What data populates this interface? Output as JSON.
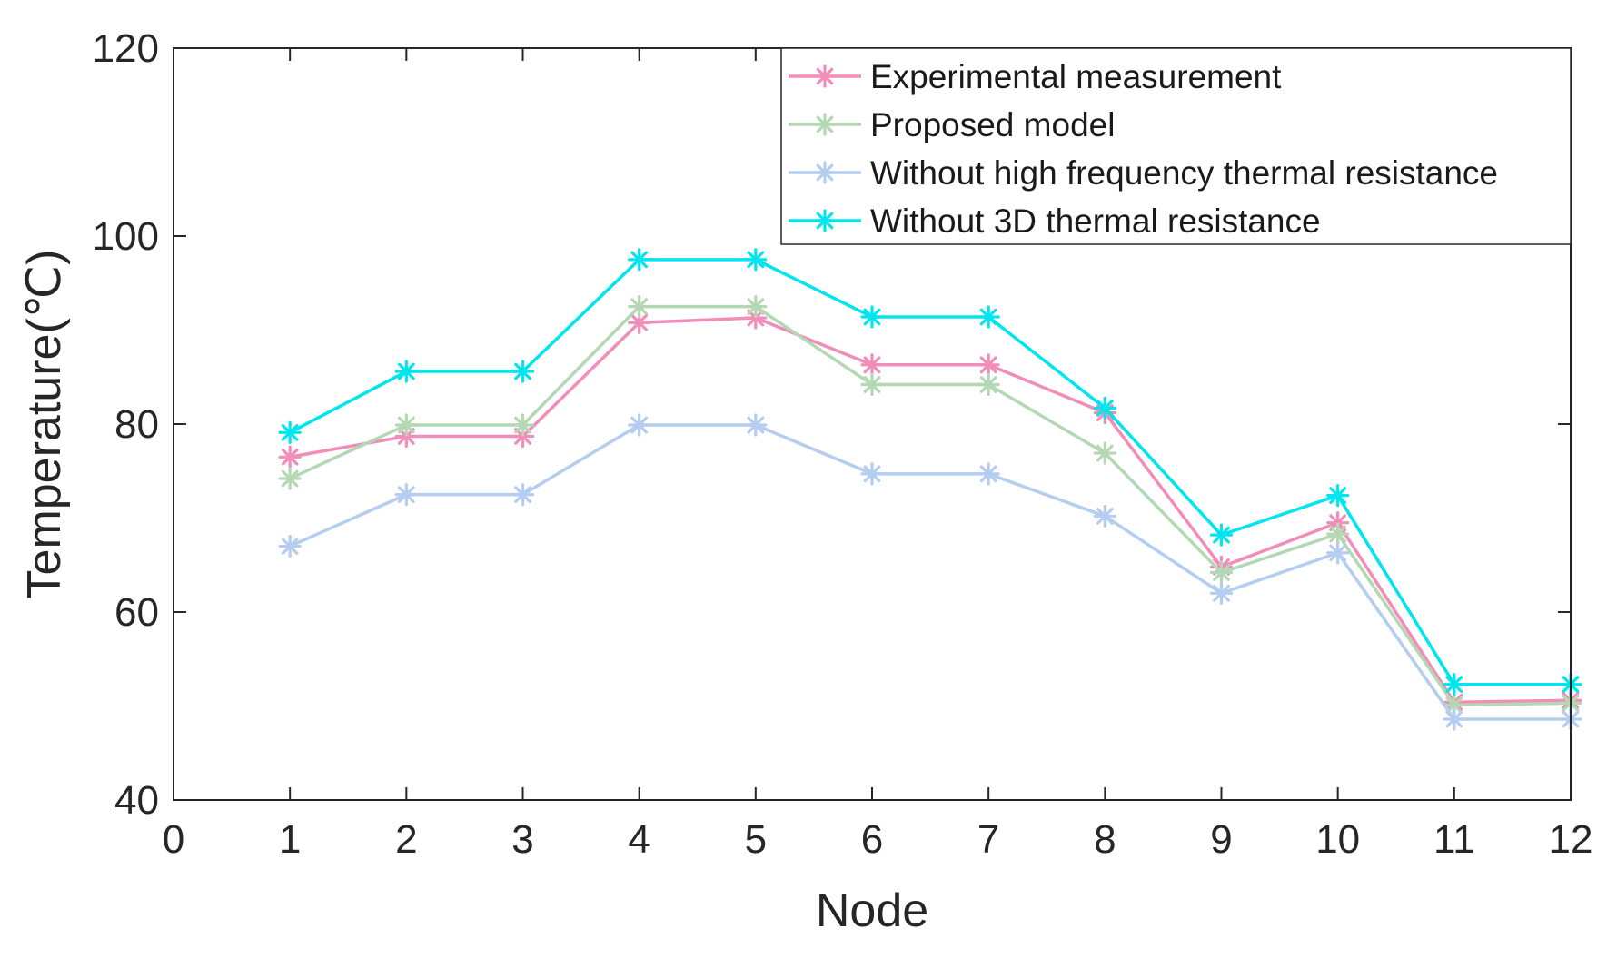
{
  "chart_data": {
    "type": "line",
    "title": "",
    "xlabel": "Node",
    "ylabel": "Temperature(℃)",
    "xlim": [
      0,
      12
    ],
    "ylim": [
      40,
      120
    ],
    "xticks": [
      "0",
      "1",
      "2",
      "3",
      "4",
      "5",
      "6",
      "7",
      "8",
      "9",
      "10",
      "11",
      "12"
    ],
    "yticks": [
      "40",
      "60",
      "80",
      "100",
      "120"
    ],
    "grid": false,
    "legend_position": "top-right",
    "marker": "asterisk",
    "x": [
      1,
      2,
      3,
      4,
      5,
      6,
      7,
      8,
      9,
      10,
      11,
      12
    ],
    "series": [
      {
        "name": "Experimental measurement",
        "color": "#f28cb8",
        "values": [
          76.5,
          78.7,
          78.7,
          90.8,
          91.3,
          86.3,
          86.3,
          81.2,
          64.8,
          69.5,
          50.4,
          50.6
        ]
      },
      {
        "name": "Proposed model",
        "color": "#b5d8b4",
        "values": [
          74.2,
          79.9,
          79.9,
          92.5,
          92.5,
          84.2,
          84.2,
          76.9,
          64.2,
          68.3,
          50.1,
          50.3
        ]
      },
      {
        "name": "Without high frequency thermal resistance",
        "color": "#b4cdf0",
        "values": [
          67.0,
          72.5,
          72.5,
          79.9,
          79.9,
          74.7,
          74.7,
          70.2,
          62.0,
          66.3,
          48.6,
          48.6
        ]
      },
      {
        "name": "Without 3D thermal resistance",
        "color": "#00e5ee",
        "values": [
          79.1,
          85.6,
          85.6,
          97.5,
          97.5,
          91.4,
          91.4,
          81.7,
          68.2,
          72.4,
          52.3,
          52.3
        ]
      }
    ]
  }
}
